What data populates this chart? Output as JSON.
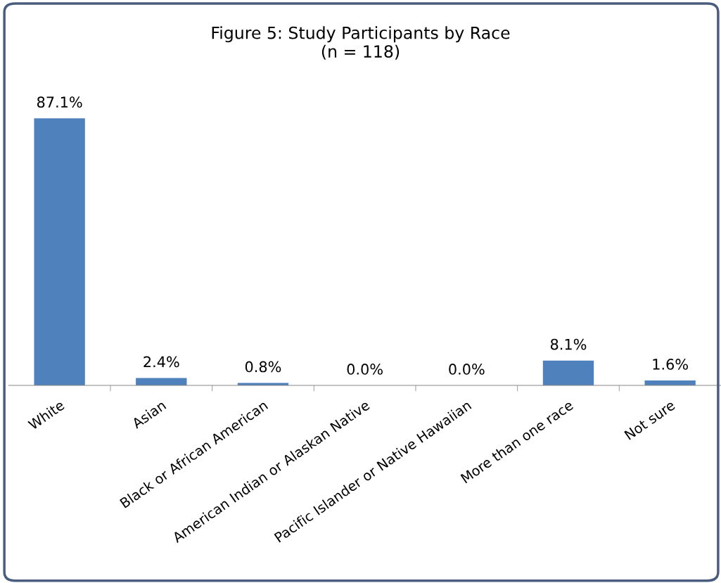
{
  "chart_data": {
    "type": "bar",
    "title": "Figure 5: Study Participants by Race\n(n = 118)",
    "categories": [
      "White",
      "Asian",
      "Black or African American",
      "American Indian or Alaskan Native",
      "Pacific Islander or Native Hawaiian",
      "More than one race",
      "Not sure"
    ],
    "values": [
      87.1,
      2.4,
      0.8,
      0.0,
      0.0,
      8.1,
      1.6
    ],
    "value_labels": [
      "87.1%",
      "2.4%",
      "0.8%",
      "0.0%",
      "0.0%",
      "8.1%",
      "1.6%"
    ],
    "color": "#4f81bd",
    "grid": false,
    "legend": false
  }
}
